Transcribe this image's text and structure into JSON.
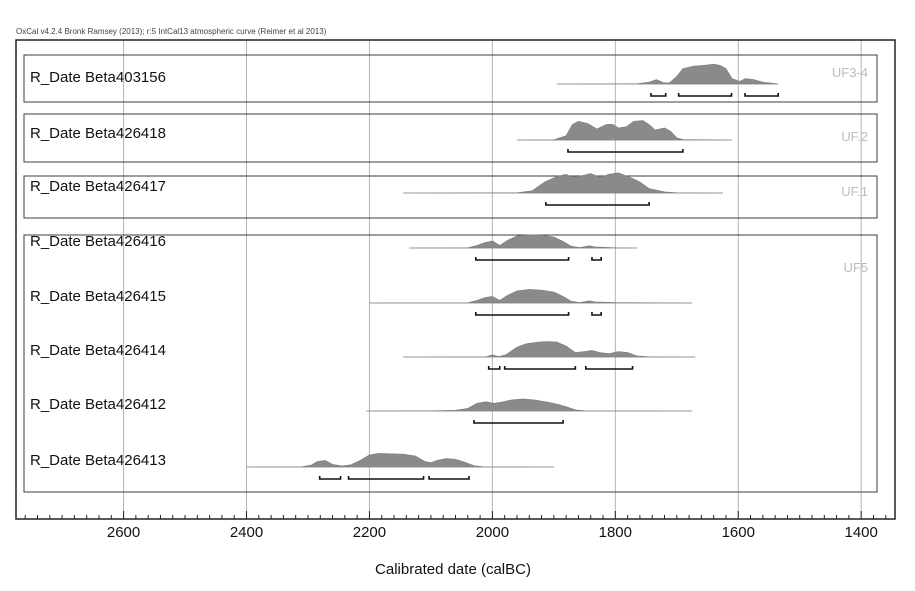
{
  "chart_data": {
    "type": "radiocarbon-calibration-multiplot",
    "header": "OxCal v4.2.4 Bronk Ramsey (2013); r:5 IntCal13 atmospheric curve (Reimer et al 2013)",
    "xlabel": "Calibrated date (calBC)",
    "xlim": [
      2775,
      1345
    ],
    "x_reversed": true,
    "ticks": [
      2600,
      2400,
      2200,
      2000,
      1800,
      1600,
      1400
    ],
    "tick_labels": [
      "2600",
      "2400",
      "2200",
      "2000",
      "1800",
      "1600",
      "1400"
    ],
    "minor_tick_step": 20,
    "grid": true,
    "colors": {
      "distribution": "#8a8a8a",
      "frame": "#222222",
      "grid": "#b4b4b4",
      "group_label": "#bcbcbc"
    },
    "groups": [
      {
        "label": "UF3-4",
        "dates": [
          0
        ]
      },
      {
        "label": "UF.2",
        "dates": [
          1
        ]
      },
      {
        "label": "UF.1",
        "dates": [
          2
        ]
      },
      {
        "label": "UF5",
        "dates": [
          3,
          4,
          5,
          6,
          7
        ]
      }
    ],
    "series": [
      {
        "name": "R_Date Beta403156",
        "tail": [
          1895,
          1535
        ],
        "density": [
          [
            1895,
            0
          ],
          [
            1765,
            0.01
          ],
          [
            1745,
            0.08
          ],
          [
            1733,
            0.2
          ],
          [
            1722,
            0.06
          ],
          [
            1712,
            0.05
          ],
          [
            1700,
            0.35
          ],
          [
            1690,
            0.7
          ],
          [
            1672,
            0.82
          ],
          [
            1655,
            0.85
          ],
          [
            1640,
            0.9
          ],
          [
            1630,
            0.85
          ],
          [
            1620,
            0.7
          ],
          [
            1610,
            0.25
          ],
          [
            1598,
            0.12
          ],
          [
            1588,
            0.25
          ],
          [
            1575,
            0.2
          ],
          [
            1560,
            0.08
          ],
          [
            1540,
            0.02
          ],
          [
            1535,
            0
          ]
        ],
        "ranges_95": [
          [
            1742,
            1718
          ],
          [
            1697,
            1611
          ],
          [
            1589,
            1535
          ]
        ]
      },
      {
        "name": "R_Date Beta426418",
        "tail": [
          1960,
          1610
        ],
        "density": [
          [
            1960,
            0
          ],
          [
            1900,
            0.01
          ],
          [
            1880,
            0.2
          ],
          [
            1870,
            0.7
          ],
          [
            1860,
            0.85
          ],
          [
            1845,
            0.75
          ],
          [
            1830,
            0.5
          ],
          [
            1815,
            0.7
          ],
          [
            1805,
            0.72
          ],
          [
            1795,
            0.55
          ],
          [
            1782,
            0.6
          ],
          [
            1770,
            0.85
          ],
          [
            1755,
            0.88
          ],
          [
            1745,
            0.7
          ],
          [
            1735,
            0.45
          ],
          [
            1720,
            0.55
          ],
          [
            1710,
            0.4
          ],
          [
            1700,
            0.1
          ],
          [
            1690,
            0.02
          ],
          [
            1610,
            0
          ]
        ],
        "ranges_95": [
          [
            1877,
            1690
          ]
        ]
      },
      {
        "name": "R_Date Beta426417",
        "tail": [
          2145,
          1625
        ],
        "density": [
          [
            2145,
            0
          ],
          [
            1960,
            0.01
          ],
          [
            1935,
            0.1
          ],
          [
            1915,
            0.5
          ],
          [
            1895,
            0.75
          ],
          [
            1880,
            0.85
          ],
          [
            1870,
            0.72
          ],
          [
            1855,
            0.78
          ],
          [
            1840,
            0.88
          ],
          [
            1825,
            0.72
          ],
          [
            1810,
            0.85
          ],
          [
            1795,
            0.92
          ],
          [
            1775,
            0.7
          ],
          [
            1760,
            0.5
          ],
          [
            1745,
            0.2
          ],
          [
            1720,
            0.05
          ],
          [
            1700,
            0.01
          ],
          [
            1625,
            0
          ]
        ],
        "ranges_95": [
          [
            1913,
            1745
          ]
        ]
      },
      {
        "name": "R_Date Beta426416",
        "tail": [
          2135,
          1765
        ],
        "density": [
          [
            2135,
            0
          ],
          [
            2040,
            0.01
          ],
          [
            2025,
            0.12
          ],
          [
            2012,
            0.25
          ],
          [
            2000,
            0.32
          ],
          [
            1988,
            0.12
          ],
          [
            1975,
            0.35
          ],
          [
            1960,
            0.55
          ],
          [
            1940,
            0.6
          ],
          [
            1920,
            0.58
          ],
          [
            1900,
            0.5
          ],
          [
            1885,
            0.3
          ],
          [
            1872,
            0.08
          ],
          [
            1858,
            0.02
          ],
          [
            1842,
            0.1
          ],
          [
            1833,
            0.05
          ],
          [
            1800,
            0.01
          ],
          [
            1765,
            0
          ]
        ],
        "ranges_95": [
          [
            2027,
            1876
          ],
          [
            1838,
            1823
          ]
        ]
      },
      {
        "name": "R_Date Beta426415",
        "tail": [
          2200,
          1675
        ],
        "density": [
          [
            2200,
            0
          ],
          [
            2040,
            0.01
          ],
          [
            2025,
            0.12
          ],
          [
            2012,
            0.25
          ],
          [
            2000,
            0.3
          ],
          [
            1988,
            0.12
          ],
          [
            1975,
            0.35
          ],
          [
            1960,
            0.55
          ],
          [
            1940,
            0.62
          ],
          [
            1920,
            0.58
          ],
          [
            1900,
            0.5
          ],
          [
            1885,
            0.3
          ],
          [
            1872,
            0.08
          ],
          [
            1858,
            0.02
          ],
          [
            1842,
            0.1
          ],
          [
            1833,
            0.05
          ],
          [
            1800,
            0.02
          ],
          [
            1675,
            0
          ]
        ],
        "ranges_95": [
          [
            2027,
            1876
          ],
          [
            1838,
            1823
          ]
        ]
      },
      {
        "name": "R_Date Beta426414",
        "tail": [
          2145,
          1670
        ],
        "density": [
          [
            2145,
            0
          ],
          [
            2010,
            0.01
          ],
          [
            2000,
            0.1
          ],
          [
            1990,
            0.02
          ],
          [
            1978,
            0.1
          ],
          [
            1960,
            0.45
          ],
          [
            1945,
            0.6
          ],
          [
            1925,
            0.68
          ],
          [
            1910,
            0.7
          ],
          [
            1895,
            0.68
          ],
          [
            1880,
            0.5
          ],
          [
            1865,
            0.2
          ],
          [
            1850,
            0.25
          ],
          [
            1838,
            0.3
          ],
          [
            1825,
            0.2
          ],
          [
            1810,
            0.15
          ],
          [
            1795,
            0.25
          ],
          [
            1780,
            0.2
          ],
          [
            1765,
            0.05
          ],
          [
            1745,
            0.01
          ],
          [
            1670,
            0
          ]
        ],
        "ranges_95": [
          [
            2006,
            1988
          ],
          [
            1980,
            1865
          ],
          [
            1848,
            1772
          ]
        ]
      },
      {
        "name": "R_Date Beta426412",
        "tail": [
          2205,
          1675
        ],
        "density": [
          [
            2205,
            0
          ],
          [
            2100,
            0.01
          ],
          [
            2060,
            0.03
          ],
          [
            2040,
            0.12
          ],
          [
            2025,
            0.35
          ],
          [
            2010,
            0.42
          ],
          [
            1998,
            0.35
          ],
          [
            1985,
            0.4
          ],
          [
            1970,
            0.5
          ],
          [
            1950,
            0.55
          ],
          [
            1930,
            0.5
          ],
          [
            1910,
            0.4
          ],
          [
            1895,
            0.32
          ],
          [
            1880,
            0.2
          ],
          [
            1865,
            0.05
          ],
          [
            1850,
            0.01
          ],
          [
            1675,
            0
          ]
        ],
        "ranges_95": [
          [
            2030,
            1885
          ]
        ]
      },
      {
        "name": "R_Date Beta426413",
        "tail": [
          2400,
          1900
        ],
        "density": [
          [
            2400,
            0
          ],
          [
            2310,
            0.01
          ],
          [
            2295,
            0.08
          ],
          [
            2285,
            0.25
          ],
          [
            2272,
            0.3
          ],
          [
            2260,
            0.12
          ],
          [
            2245,
            0.05
          ],
          [
            2230,
            0.1
          ],
          [
            2215,
            0.3
          ],
          [
            2200,
            0.55
          ],
          [
            2185,
            0.62
          ],
          [
            2165,
            0.6
          ],
          [
            2145,
            0.58
          ],
          [
            2125,
            0.5
          ],
          [
            2110,
            0.25
          ],
          [
            2100,
            0.2
          ],
          [
            2090,
            0.3
          ],
          [
            2075,
            0.38
          ],
          [
            2060,
            0.35
          ],
          [
            2045,
            0.22
          ],
          [
            2030,
            0.06
          ],
          [
            2015,
            0.01
          ],
          [
            1900,
            0
          ]
        ],
        "ranges_95": [
          [
            2281,
            2247
          ],
          [
            2234,
            2112
          ],
          [
            2103,
            2038
          ]
        ]
      }
    ]
  }
}
